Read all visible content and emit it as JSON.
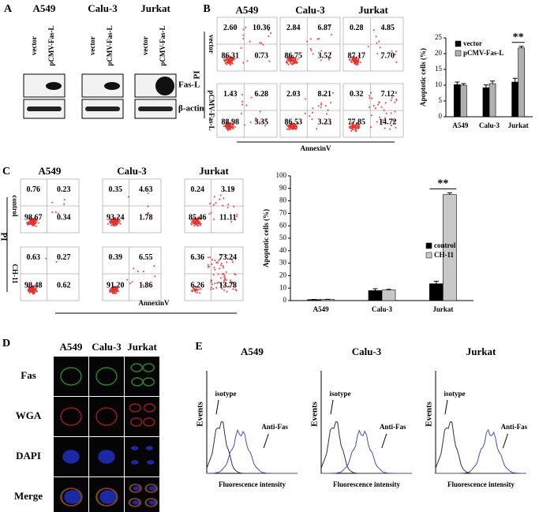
{
  "chart_data": [
    {
      "type": "bar",
      "y_label": "Apoptotic cells (%)",
      "categories": [
        "A549",
        "Calu-3",
        "Jurkat"
      ],
      "series": [
        {
          "name": "vector",
          "color": "#000000",
          "values": [
            10.2,
            9.2,
            11
          ],
          "errors": [
            0.8,
            0.9,
            1.2
          ]
        },
        {
          "name": "pCMV-Fas-L",
          "color": "#b0b0b0",
          "values": [
            10,
            10.5,
            21.8
          ],
          "errors": [
            0.5,
            0.8,
            0.5
          ]
        }
      ],
      "ylim": [
        0,
        25
      ],
      "yticks": [
        0,
        5,
        10,
        15,
        20,
        25
      ],
      "legend": "top-left",
      "annotation": "**"
    },
    {
      "type": "bar",
      "y_label": "Apoptotic cells (%)",
      "categories": [
        "A549",
        "Calu-3",
        "Jurkat"
      ],
      "series": [
        {
          "name": "control",
          "color": "#000000",
          "values": [
            0.8,
            8,
            13.5
          ],
          "errors": [
            0.1,
            1.5,
            2
          ]
        },
        {
          "name": "CH-11",
          "color": "#c8c8c8",
          "values": [
            0.9,
            8.5,
            85
          ],
          "errors": [
            0.1,
            0.5,
            1.5
          ]
        }
      ],
      "ylim": [
        0,
        100
      ],
      "yticks": [
        0,
        10,
        20,
        30,
        40,
        50,
        60,
        70,
        80,
        90,
        100
      ],
      "legend": "right",
      "annotation": "**"
    }
  ],
  "panel_a": {
    "label": "A",
    "columns": [
      "A549",
      "Calu-3",
      "Jurkat"
    ],
    "lanes": [
      "vector",
      "pCMV-Fas-L"
    ],
    "bands": [
      "Fas-L",
      "β-actin"
    ]
  },
  "panel_b": {
    "label": "B",
    "columns": [
      "A549",
      "Calu-3",
      "Jurkat"
    ],
    "rows": [
      "vector",
      "pCMV-Fas-L"
    ],
    "y_label": "PI",
    "x_label": "AnnexinV",
    "quadrants": [
      [
        [
          "2.60",
          "10.36",
          "86.31",
          "0.73"
        ],
        [
          "2.84",
          "6.87",
          "86.75",
          "3.52"
        ],
        [
          "0.28",
          "4.85",
          "87.17",
          "7.70"
        ]
      ],
      [
        [
          "1.43",
          "6.28",
          "88.98",
          "3.35"
        ],
        [
          "2.03",
          "8.21",
          "86.53",
          "3.23"
        ],
        [
          "0.32",
          "7.12",
          "77.85",
          "14.72"
        ]
      ]
    ]
  },
  "panel_c": {
    "label": "C",
    "columns": [
      "A549",
      "Calu-3",
      "Jurkat"
    ],
    "rows": [
      "control",
      "CH-11"
    ],
    "y_label": "PI",
    "x_label": "AnnexinV",
    "quadrants": [
      [
        [
          "0.76",
          "0.23",
          "98.67",
          "0.34"
        ],
        [
          "0.35",
          "4.63",
          "93.24",
          "1.78"
        ],
        [
          "0.24",
          "3.19",
          "85.46",
          "11.11"
        ]
      ],
      [
        [
          "0.63",
          "0.27",
          "98.48",
          "0.62"
        ],
        [
          "0.39",
          "6.55",
          "91.20",
          "1.86"
        ],
        [
          "6.36",
          "73.24",
          "6.26",
          "13.78"
        ]
      ]
    ]
  },
  "panel_d": {
    "label": "D",
    "columns": [
      "A549",
      "Calu-3",
      "Jurkat"
    ],
    "rows": [
      "Fas",
      "WGA",
      "DAPI",
      "Merge"
    ]
  },
  "panel_e": {
    "label": "E",
    "plots": [
      "A549",
      "Calu-3",
      "Jurkat"
    ],
    "isotype": "isotype",
    "antibody": "Anti-Fas",
    "y_label": "Events",
    "x_label": "Fluorescence intensity"
  }
}
